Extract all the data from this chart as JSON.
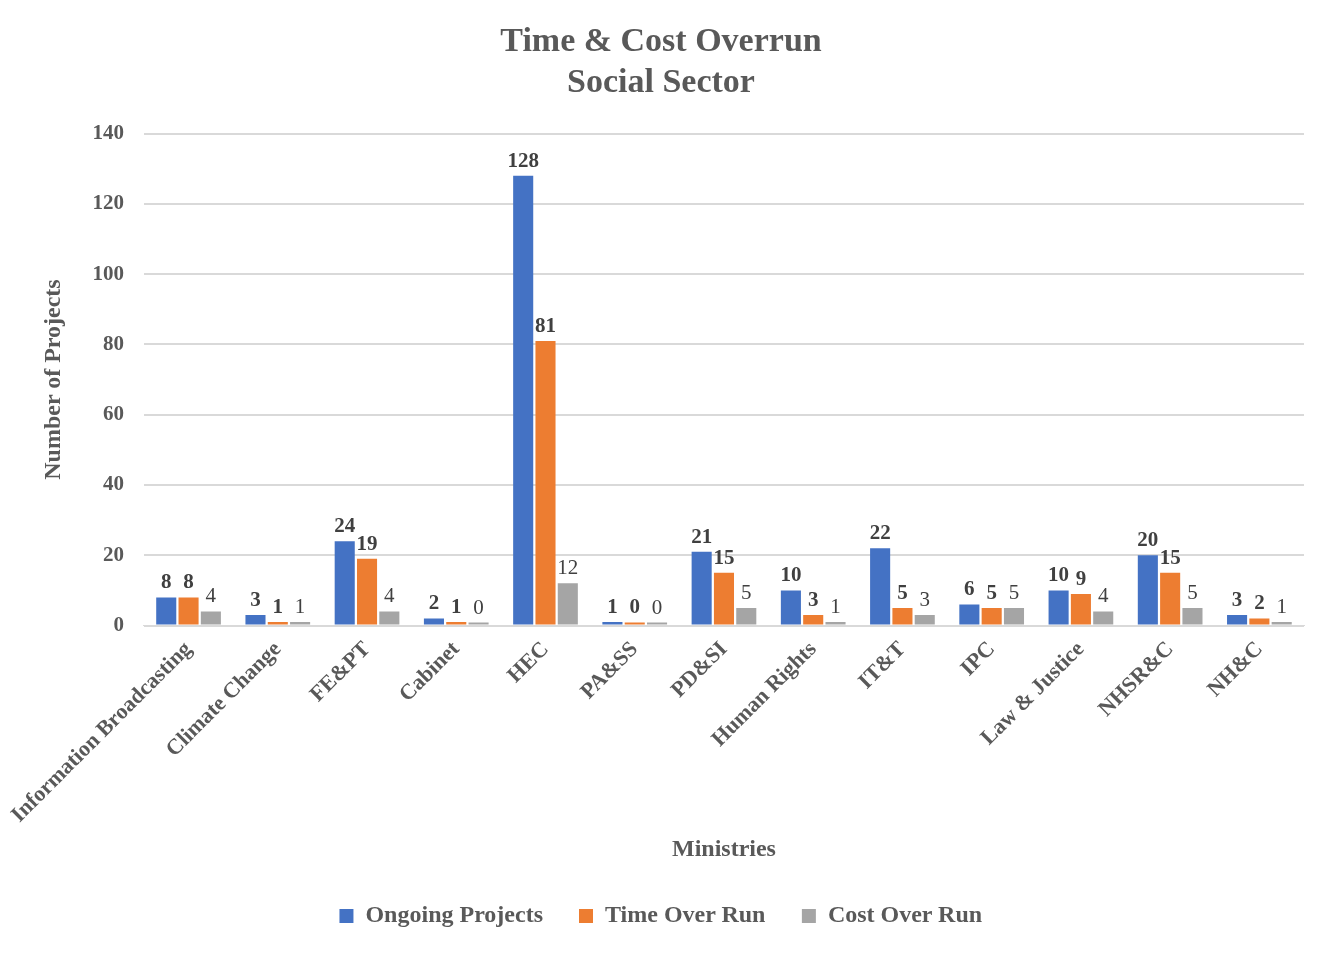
{
  "chart_data": {
    "type": "bar",
    "title": "Time & Cost Overrun",
    "subtitle": "Social Sector",
    "xlabel": "Ministries",
    "ylabel": "Number of Projects",
    "categories": [
      "Information Broadcasting",
      "Climate Change",
      "FE&PT",
      "Cabinet",
      "HEC",
      "PA&SS",
      "PD&SI",
      "Human Rights",
      "IT&T",
      "IPC",
      "Law & Justice",
      "NHSR&C",
      "NH&C"
    ],
    "series": [
      {
        "name": "Ongoing Projects",
        "color": "#4472c4",
        "values": [
          8,
          3,
          24,
          2,
          128,
          1,
          21,
          10,
          22,
          6,
          10,
          20,
          3
        ]
      },
      {
        "name": "Time Over Run",
        "color": "#ed7d31",
        "values": [
          8,
          1,
          19,
          1,
          81,
          0,
          15,
          3,
          5,
          5,
          9,
          15,
          2
        ]
      },
      {
        "name": "Cost Over Run",
        "color": "#a5a5a5",
        "values": [
          4,
          1,
          4,
          0,
          12,
          0,
          5,
          1,
          3,
          5,
          4,
          5,
          1
        ]
      }
    ],
    "ylim": [
      0,
      140
    ],
    "yticks": [
      0,
      20,
      40,
      60,
      80,
      100,
      120,
      140
    ],
    "grid": "y",
    "legend": "bottom",
    "data_labels": true
  }
}
